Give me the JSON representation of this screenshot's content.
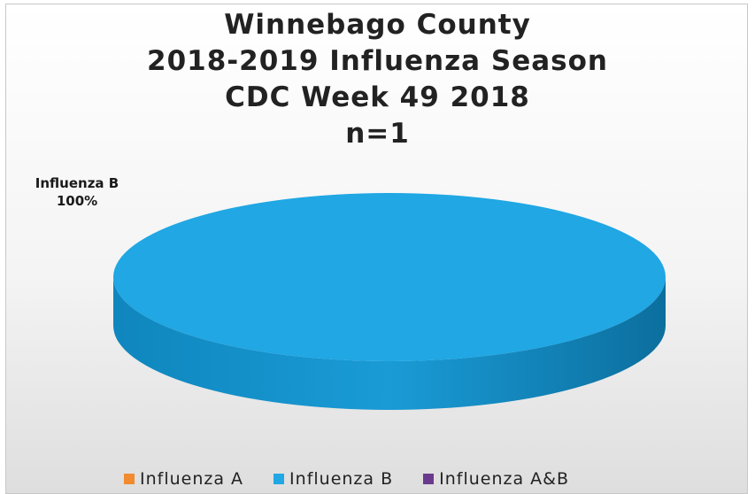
{
  "chart_data": {
    "type": "pie",
    "title_lines": [
      "Winnebago County",
      "2018-2019 Influenza Season",
      "CDC Week 49 2018",
      "n=1"
    ],
    "categories": [
      "Influenza A",
      "Influenza B",
      "Influenza A&B"
    ],
    "values": [
      0,
      1,
      0
    ],
    "percent_labels": [
      "0%",
      "100%",
      "0%"
    ],
    "data_label": {
      "name": "Influenza B",
      "value": "100%"
    },
    "colors": [
      "#f28a2f",
      "#20a7e4",
      "#6a3a8e"
    ],
    "three_d": true,
    "legend_position": "bottom"
  }
}
